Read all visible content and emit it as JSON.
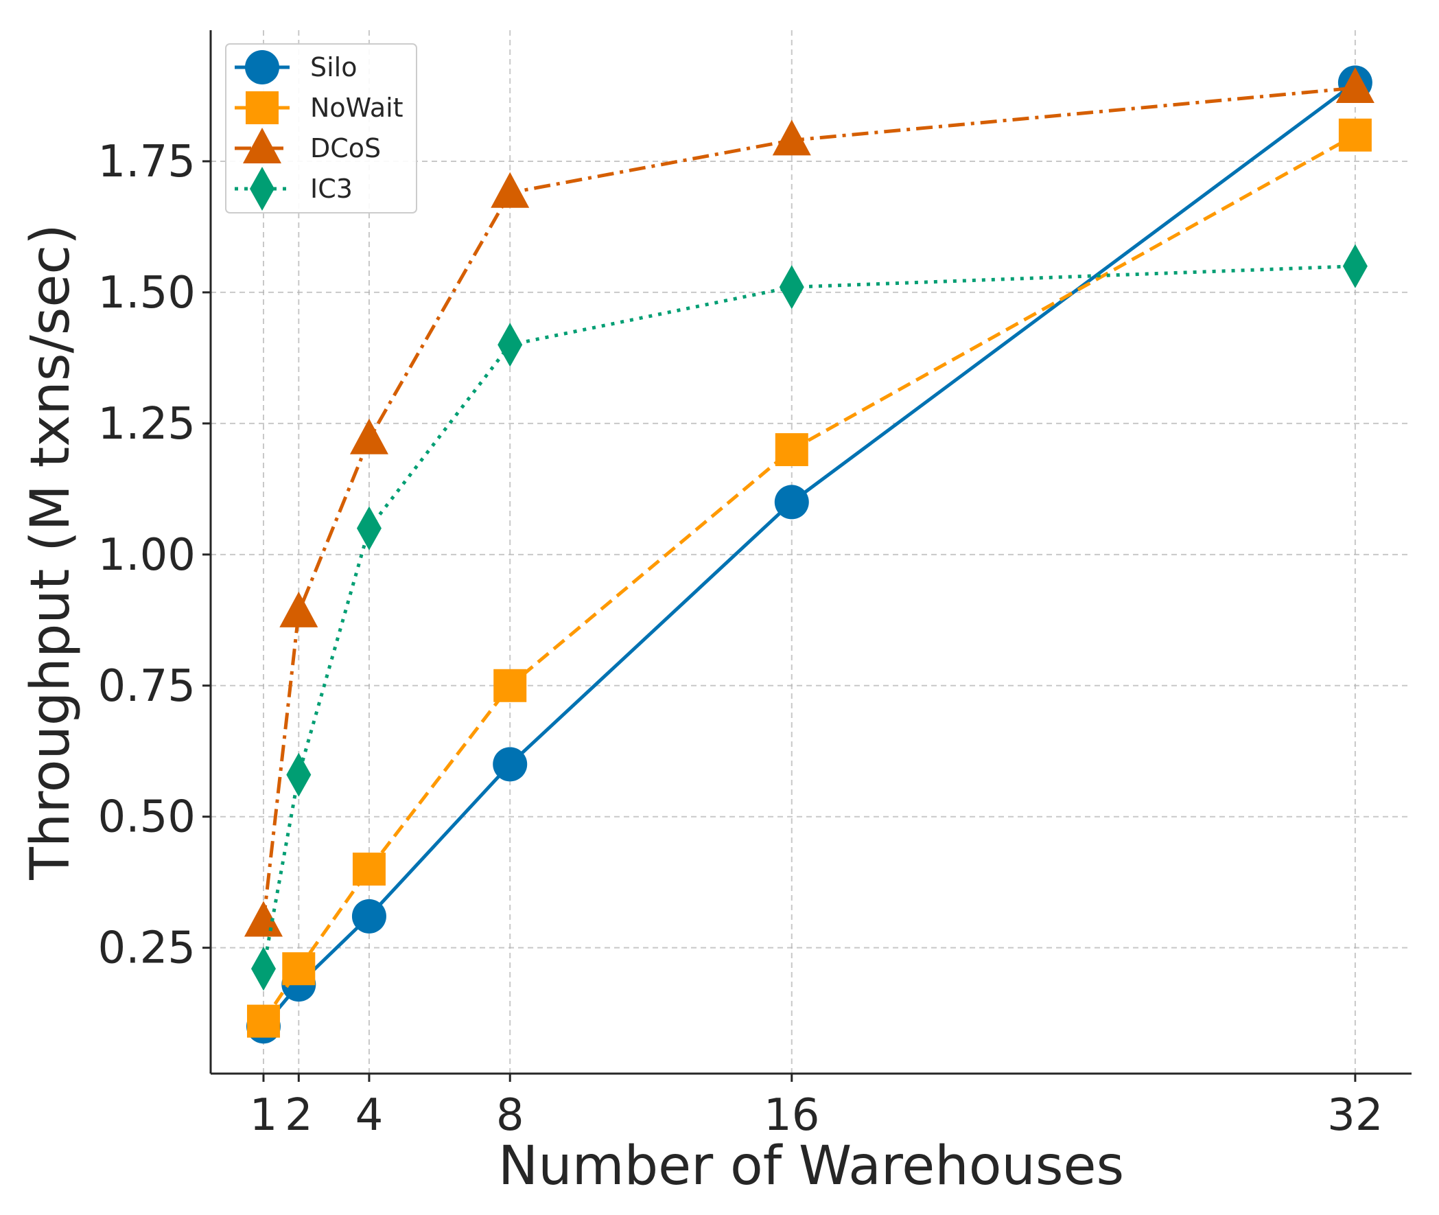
{
  "chart_data": {
    "type": "line",
    "title": "",
    "xlabel": "Number of Warehouses",
    "ylabel": "Throughput (M txns/sec)",
    "x": [
      1,
      2,
      4,
      8,
      16,
      32
    ],
    "x_tick_labels": [
      "1",
      "2",
      "4",
      "8",
      "16",
      "32"
    ],
    "y_ticks": [
      0.25,
      0.5,
      0.75,
      1.0,
      1.25,
      1.5,
      1.75
    ],
    "y_tick_labels": [
      "0.25",
      "0.50",
      "0.75",
      "1.00",
      "1.25",
      "1.50",
      "1.75"
    ],
    "xlim": [
      -0.5,
      33.6
    ],
    "ylim": [
      0.01,
      2.0
    ],
    "grid": true,
    "legend_position": "top-left",
    "series": [
      {
        "name": "Silo",
        "values": [
          0.1,
          0.18,
          0.31,
          0.6,
          1.1,
          1.9
        ],
        "color": "#0072b2",
        "marker": "circle",
        "linestyle": "solid"
      },
      {
        "name": "NoWait",
        "values": [
          0.11,
          0.21,
          0.4,
          0.75,
          1.2,
          1.8
        ],
        "color": "#ff9900",
        "marker": "square",
        "linestyle": "dashed"
      },
      {
        "name": "DCoS",
        "values": [
          0.3,
          0.89,
          1.22,
          1.69,
          1.79,
          1.89
        ],
        "color": "#d55e00",
        "marker": "triangle",
        "linestyle": "dashdot"
      },
      {
        "name": "IC3",
        "values": [
          0.21,
          0.58,
          1.05,
          1.4,
          1.51,
          1.55
        ],
        "color": "#009e73",
        "marker": "diamond",
        "linestyle": "dotted"
      }
    ]
  }
}
